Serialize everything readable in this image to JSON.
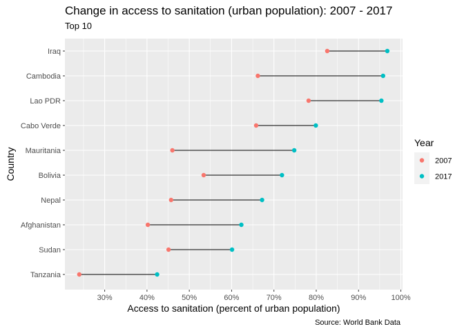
{
  "chart_data": {
    "type": "dumbbell",
    "title": "Change in access to sanitation (urban population): 2007 - 2017",
    "subtitle": "Top 10",
    "xlabel": "Access to sanitation (percent of urban population)",
    "ylabel": "Country",
    "caption": "Source: World Bank Data",
    "xlim": [
      20.6,
      100.4
    ],
    "x_ticks": [
      30,
      40,
      50,
      60,
      70,
      80,
      90,
      100
    ],
    "x_tick_labels": [
      "30%",
      "40%",
      "50%",
      "60%",
      "70%",
      "80%",
      "90%",
      "100%"
    ],
    "categories": [
      "Iraq",
      "Cambodia",
      "Lao PDR",
      "Cabo Verde",
      "Mauritania",
      "Bolivia",
      "Nepal",
      "Afghanistan",
      "Sudan",
      "Tanzania"
    ],
    "series": [
      {
        "name": "2007",
        "color": "#f8766d",
        "values": [
          82.6,
          66.2,
          78.2,
          65.8,
          46.0,
          53.4,
          45.7,
          40.2,
          45.1,
          24.0
        ]
      },
      {
        "name": "2017",
        "color": "#00bfc4",
        "values": [
          96.8,
          95.8,
          95.4,
          79.9,
          74.8,
          71.9,
          67.2,
          62.3,
          60.1,
          42.4
        ]
      }
    ],
    "legend": {
      "title": "Year",
      "position": "right"
    },
    "grid": true,
    "colors": {
      "panel_bg": "#ebebeb",
      "grid": "#ffffff",
      "segment": "#000000"
    }
  }
}
